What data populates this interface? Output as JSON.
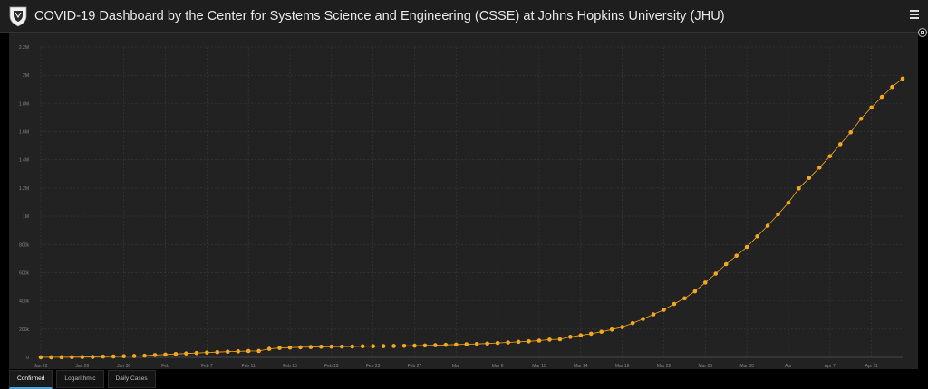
{
  "header": {
    "title": "COVID-19 Dashboard by the Center for Systems Science and Engineering (CSSE) at Johns Hopkins University (JHU)",
    "logo_icon": "jhu-shield-icon",
    "menu_icon": "hamburger-menu-icon"
  },
  "colors": {
    "series": "#f4a81d",
    "grid": "#3a3a3a",
    "panel": "#222222",
    "header": "#1e1e1e",
    "tab_active": "#4aa3df"
  },
  "tabs": [
    {
      "label": "Confirmed",
      "active": true
    },
    {
      "label": "Logarithmic",
      "active": false
    },
    {
      "label": "Daily Cases",
      "active": false
    }
  ],
  "chart_data": {
    "type": "line",
    "title": "",
    "xlabel": "",
    "ylabel": "",
    "x_start": "Jan 22",
    "x_ticks": [
      "Jan 22",
      "Jan 26",
      "Jan 30",
      "Feb",
      "Feb 7",
      "Feb 11",
      "Feb 15",
      "Feb 19",
      "Feb 23",
      "Feb 27",
      "Mar",
      "Mar 6",
      "Mar 10",
      "Mar 14",
      "Mar 18",
      "Mar 22",
      "Mar 26",
      "Mar 30",
      "Apr",
      "Apr 7",
      "Apr 11"
    ],
    "y_ticks": [
      "0",
      "200k",
      "400k",
      "600k",
      "800k",
      "1M",
      "1.2M",
      "1.4M",
      "1.6M",
      "1.8M",
      "2M",
      "2.2M"
    ],
    "ylim": [
      0,
      2200000
    ],
    "grid": true,
    "series": [
      {
        "values": [
          555,
          654,
          941,
          1434,
          2118,
          2927,
          5578,
          6166,
          8234,
          9927,
          12038,
          16787,
          19881,
          23892,
          27635,
          30794,
          34391,
          37120,
          40150,
          42762,
          44802,
          45221,
          60368,
          66885,
          69030,
          71224,
          73258,
          75136,
          75639,
          76197,
          76819,
          78572,
          78958,
          79561,
          80406,
          81388,
          82746,
          84112,
          86011,
          88369,
          90306,
          92840,
          95120,
          97886,
          101801,
          105847,
          109821,
          113590,
          118620,
          125875,
          128352,
          145205,
          156101,
          167454,
          181574,
          197102,
          214821,
          242570,
          272208,
          304507,
          336953,
          378235,
          418045,
          467653,
          529591,
          593291,
          660706,
          720117,
          782365,
          857487,
          932605,
          1013157,
          1095917,
          1197405,
          1272115,
          1345048,
          1426096,
          1511104,
          1595350,
          1691719,
          1771514,
          1846679,
          1917320,
          1976191
        ]
      }
    ]
  }
}
